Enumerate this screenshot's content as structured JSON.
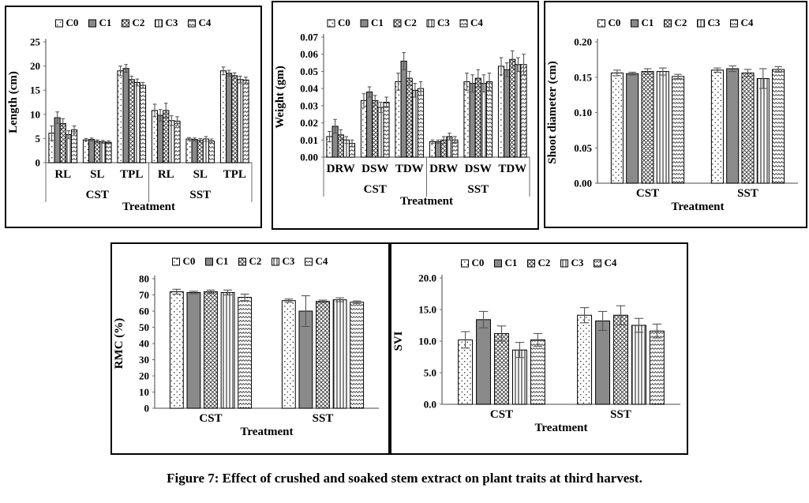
{
  "figure_caption": "Figure 7: Effect of crushed and soaked stem extract on plant traits at third harvest.",
  "series_labels": [
    "C0",
    "C1",
    "C2",
    "C3",
    "C4"
  ],
  "series_styles": [
    {
      "name": "C0",
      "pattern": "dots"
    },
    {
      "name": "C1",
      "pattern": "solid"
    },
    {
      "name": "C2",
      "pattern": "diagonal-crosshatch"
    },
    {
      "name": "C3",
      "pattern": "vertical-lines"
    },
    {
      "name": "C4",
      "pattern": "zigzag"
    }
  ],
  "colors": {
    "background": "#ffffff",
    "panel_border": "#000000",
    "bar_outline": "#000000",
    "bar_gray": "#8a8a8a",
    "pattern_ink": "#3a3a3a",
    "axis": "#6e6e6e",
    "error_bar": "#555555",
    "text": "#000000"
  },
  "chart_data": [
    {
      "id": "length",
      "type": "bar",
      "title": "",
      "ylabel": "Length (cm)",
      "xlabel": "Treatment",
      "ylim": [
        0,
        25
      ],
      "ytick_step": 5,
      "ytick_decimals": 0,
      "grid": false,
      "legend_position": "top",
      "two_level": true,
      "group_labels": [
        "CST",
        "SST"
      ],
      "categories": [
        "RL",
        "SL",
        "TPL",
        "RL",
        "SL",
        "TPL"
      ],
      "series": [
        {
          "name": "C0",
          "values": [
            6.1,
            4.7,
            19.0,
            10.8,
            4.9,
            19.0
          ],
          "errors": [
            1.5,
            0.3,
            1.0,
            1.3,
            0.3,
            0.8
          ]
        },
        {
          "name": "C1",
          "values": [
            9.3,
            4.8,
            19.5,
            9.8,
            4.8,
            18.5
          ],
          "errors": [
            1.2,
            0.3,
            0.8,
            1.2,
            0.3,
            0.6
          ]
        },
        {
          "name": "C2",
          "values": [
            8.1,
            4.4,
            17.2,
            10.8,
            4.6,
            18.0
          ],
          "errors": [
            1.0,
            0.3,
            0.7,
            1.5,
            0.4,
            0.6
          ]
        },
        {
          "name": "C3",
          "values": [
            5.8,
            4.3,
            16.6,
            8.7,
            4.9,
            17.2
          ],
          "errors": [
            0.8,
            0.3,
            0.7,
            1.0,
            0.5,
            0.7
          ]
        },
        {
          "name": "C4",
          "values": [
            6.8,
            4.2,
            16.0,
            8.6,
            4.5,
            17.1
          ],
          "errors": [
            0.8,
            0.3,
            0.6,
            0.9,
            0.4,
            0.6
          ]
        }
      ]
    },
    {
      "id": "weight",
      "type": "bar",
      "title": "",
      "ylabel": "Weight (gm)",
      "xlabel": "Treatment",
      "ylim": [
        0,
        0.07
      ],
      "ytick_step": 0.01,
      "ytick_decimals": 2,
      "grid": false,
      "legend_position": "top",
      "two_level": true,
      "group_labels": [
        "CST",
        "SST"
      ],
      "categories": [
        "DRW",
        "DSW",
        "TDW",
        "DRW",
        "DSW",
        "TDW"
      ],
      "series": [
        {
          "name": "C0",
          "values": [
            0.012,
            0.033,
            0.044,
            0.009,
            0.044,
            0.053
          ],
          "errors": [
            0.003,
            0.004,
            0.005,
            0.001,
            0.005,
            0.005
          ]
        },
        {
          "name": "C1",
          "values": [
            0.018,
            0.038,
            0.056,
            0.009,
            0.043,
            0.051
          ],
          "errors": [
            0.004,
            0.003,
            0.005,
            0.001,
            0.005,
            0.004
          ]
        },
        {
          "name": "C2",
          "values": [
            0.013,
            0.033,
            0.046,
            0.01,
            0.046,
            0.057
          ],
          "errors": [
            0.003,
            0.003,
            0.004,
            0.002,
            0.005,
            0.005
          ]
        },
        {
          "name": "C3",
          "values": [
            0.01,
            0.029,
            0.039,
            0.012,
            0.043,
            0.054
          ],
          "errors": [
            0.002,
            0.003,
            0.004,
            0.002,
            0.005,
            0.004
          ]
        },
        {
          "name": "C4",
          "values": [
            0.008,
            0.032,
            0.04,
            0.01,
            0.044,
            0.054
          ],
          "errors": [
            0.002,
            0.003,
            0.004,
            0.002,
            0.005,
            0.006
          ]
        }
      ]
    },
    {
      "id": "shoot",
      "type": "bar",
      "title": "",
      "ylabel": "Shoot diameter (cm)",
      "xlabel": "Treatment",
      "ylim": [
        0,
        0.2
      ],
      "ytick_step": 0.05,
      "ytick_decimals": 2,
      "grid": false,
      "legend_position": "top",
      "two_level": false,
      "group_labels": [],
      "categories": [
        "CST",
        "SST"
      ],
      "series": [
        {
          "name": "C0",
          "values": [
            0.156,
            0.16
          ],
          "errors": [
            0.004,
            0.003
          ]
        },
        {
          "name": "C1",
          "values": [
            0.155,
            0.162
          ],
          "errors": [
            0.002,
            0.004
          ]
        },
        {
          "name": "C2",
          "values": [
            0.158,
            0.156
          ],
          "errors": [
            0.004,
            0.005
          ]
        },
        {
          "name": "C3",
          "values": [
            0.158,
            0.148
          ],
          "errors": [
            0.005,
            0.014
          ]
        },
        {
          "name": "C4",
          "values": [
            0.151,
            0.161
          ],
          "errors": [
            0.003,
            0.004
          ]
        }
      ]
    },
    {
      "id": "rmc",
      "type": "bar",
      "title": "",
      "ylabel": "RMC (%)",
      "xlabel": "Treatment",
      "ylim": [
        0,
        80
      ],
      "ytick_step": 10,
      "ytick_decimals": 0,
      "grid": false,
      "legend_position": "top",
      "two_level": false,
      "group_labels": [],
      "categories": [
        "CST",
        "SST"
      ],
      "series": [
        {
          "name": "C0",
          "values": [
            72,
            66.5
          ],
          "errors": [
            1.5,
            1.0
          ]
        },
        {
          "name": "C1",
          "values": [
            71.5,
            60
          ],
          "errors": [
            0.8,
            9.5
          ]
        },
        {
          "name": "C2",
          "values": [
            72,
            66
          ],
          "errors": [
            1.0,
            0.8
          ]
        },
        {
          "name": "C3",
          "values": [
            71.5,
            67
          ],
          "errors": [
            1.5,
            1.2
          ]
        },
        {
          "name": "C4",
          "values": [
            68.5,
            65.5
          ],
          "errors": [
            2.0,
            0.8
          ]
        }
      ]
    },
    {
      "id": "svi",
      "type": "bar",
      "title": "",
      "ylabel": "SVI",
      "xlabel": "Treatment",
      "ylim": [
        0,
        20
      ],
      "ytick_step": 5,
      "ytick_decimals": 1,
      "grid": false,
      "legend_position": "top",
      "two_level": false,
      "group_labels": [],
      "categories": [
        "CST",
        "SST"
      ],
      "series": [
        {
          "name": "C0",
          "values": [
            10.2,
            14.1
          ],
          "errors": [
            1.3,
            1.2
          ]
        },
        {
          "name": "C1",
          "values": [
            13.4,
            13.2
          ],
          "errors": [
            1.3,
            1.5
          ]
        },
        {
          "name": "C2",
          "values": [
            11.2,
            14.1
          ],
          "errors": [
            1.2,
            1.5
          ]
        },
        {
          "name": "C3",
          "values": [
            8.6,
            12.5
          ],
          "errors": [
            1.2,
            1.1
          ]
        },
        {
          "name": "C4",
          "values": [
            10.2,
            11.6
          ],
          "errors": [
            1.0,
            1.1
          ]
        }
      ]
    }
  ]
}
